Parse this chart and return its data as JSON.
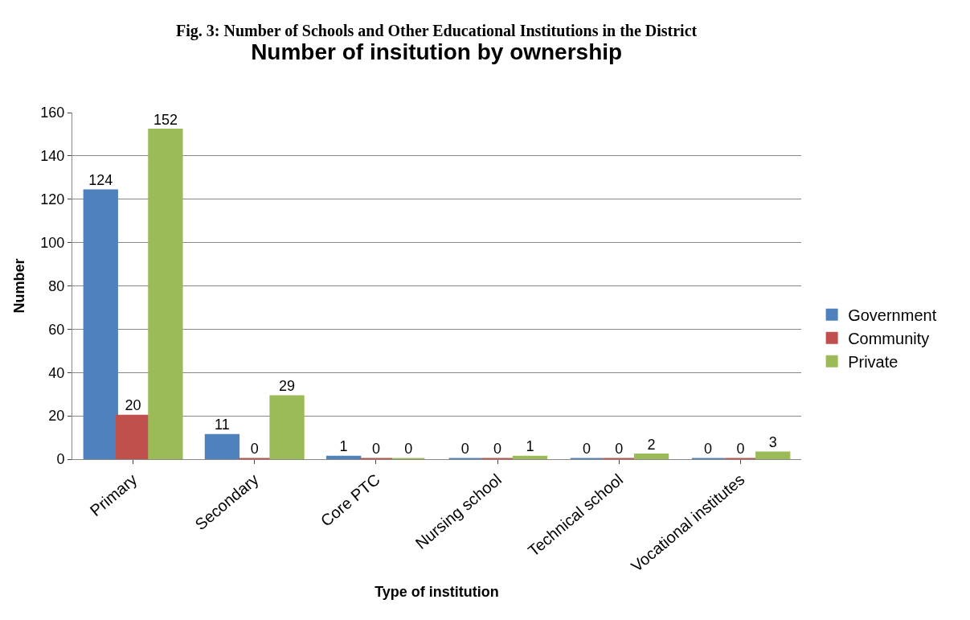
{
  "chart_data": {
    "type": "bar",
    "title": "Number of insitution by ownership",
    "xlabel": "Type of institution",
    "ylabel": "Number",
    "annotations": [
      "Fig. 3: Number of Schools and Other Educational Institutions in the District"
    ],
    "categories": [
      "Primary",
      "Secondary",
      "Core PTC",
      "Nursing school",
      "Technical school",
      "Vocational institutes"
    ],
    "series": [
      {
        "name": "Government",
        "color": "#4f81bd",
        "values": [
          124,
          11,
          1,
          0,
          0,
          0
        ]
      },
      {
        "name": "Community",
        "color": "#c0504d",
        "values": [
          20,
          0,
          0,
          0,
          0,
          0
        ]
      },
      {
        "name": "Private",
        "color": "#9bbb59",
        "values": [
          152,
          29,
          0,
          1,
          2,
          3
        ]
      }
    ],
    "ylim": [
      0,
      160
    ],
    "yticks": [
      0,
      20,
      40,
      60,
      80,
      100,
      120,
      140,
      160
    ],
    "grid": "y",
    "legend": "right",
    "data_labels": true
  }
}
